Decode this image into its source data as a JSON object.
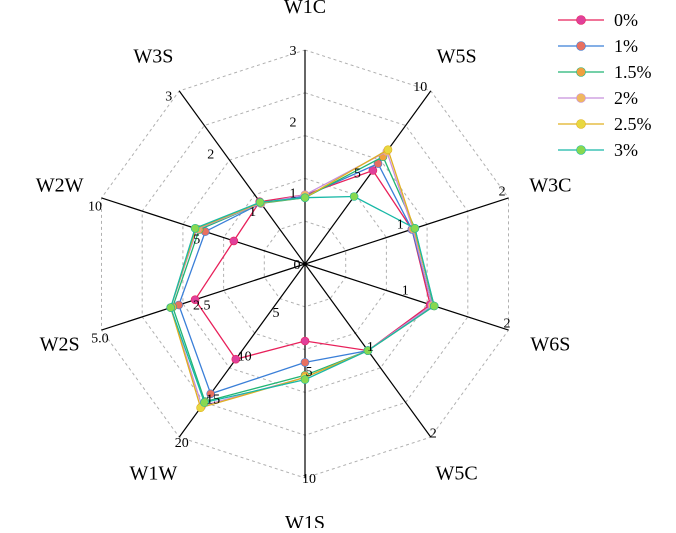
{
  "chart_data": {
    "type": "radar",
    "title": "",
    "axes": [
      "W1C",
      "W5S",
      "W3C",
      "W6S",
      "W5C",
      "W1S",
      "W1W",
      "W2S",
      "W2W",
      "W3S"
    ],
    "axis_max": [
      3,
      10,
      2,
      2,
      2,
      10,
      20,
      5.0,
      10,
      3
    ],
    "center_label": "0",
    "ticks": [
      {
        "axis": "W1C",
        "values": [
          1,
          2,
          3
        ],
        "labels": [
          "1",
          "2",
          "3"
        ]
      },
      {
        "axis": "W5S",
        "values": [
          5,
          10
        ],
        "labels": [
          "5",
          "10"
        ]
      },
      {
        "axis": "W3C",
        "values": [
          1,
          2
        ],
        "labels": [
          "1",
          "2"
        ]
      },
      {
        "axis": "W6S",
        "values": [
          1,
          2
        ],
        "labels": [
          "1",
          "2"
        ]
      },
      {
        "axis": "W5C",
        "values": [
          1,
          2
        ],
        "labels": [
          "1",
          "2"
        ]
      },
      {
        "axis": "W1S",
        "values": [
          5,
          10
        ],
        "labels": [
          "5",
          "10"
        ]
      },
      {
        "axis": "W1W",
        "values": [
          5,
          10,
          15,
          20
        ],
        "labels": [
          "5",
          "10",
          "15",
          "20"
        ]
      },
      {
        "axis": "W2S",
        "values": [
          2.5,
          5.0
        ],
        "labels": [
          "2.5",
          "5.0"
        ]
      },
      {
        "axis": "W2W",
        "values": [
          5,
          10
        ],
        "labels": [
          "5",
          "10"
        ]
      },
      {
        "axis": "W3S",
        "values": [
          1,
          2,
          3
        ],
        "labels": [
          "1",
          "2",
          "3"
        ]
      }
    ],
    "grid": true,
    "legend_position": "top-right",
    "series": [
      {
        "name": "0%",
        "color": "#e8205a",
        "values": [
          0.97,
          5.4,
          1.05,
          1.23,
          1.0,
          3.6,
          11.0,
          2.7,
          3.5,
          1.08
        ]
      },
      {
        "name": "1%",
        "color": "#3a7fd8",
        "values": [
          0.95,
          5.8,
          1.05,
          1.25,
          1.0,
          4.6,
          15.0,
          3.1,
          4.9,
          1.05
        ]
      },
      {
        "name": "1.5%",
        "color": "#22b573",
        "values": [
          0.93,
          6.2,
          1.08,
          1.26,
          1.0,
          5.2,
          15.9,
          3.25,
          5.2,
          1.05
        ]
      },
      {
        "name": "2%",
        "color": "#c890dc",
        "values": [
          0.97,
          6.5,
          1.06,
          1.25,
          1.0,
          5.3,
          16.4,
          3.3,
          5.3,
          1.05
        ]
      },
      {
        "name": "2.5%",
        "color": "#e0b020",
        "values": [
          0.93,
          6.6,
          1.07,
          1.27,
          1.0,
          5.3,
          16.6,
          3.3,
          5.35,
          1.06
        ]
      },
      {
        "name": "3%",
        "color": "#17b8a6",
        "values": [
          0.93,
          3.9,
          1.08,
          1.27,
          1.0,
          5.4,
          16.0,
          3.3,
          5.4,
          1.07
        ]
      }
    ],
    "marker_colors": [
      "#e0409a",
      "#e87060",
      "#f0a040",
      "#f0b860",
      "#e8d840",
      "#88d850"
    ]
  }
}
